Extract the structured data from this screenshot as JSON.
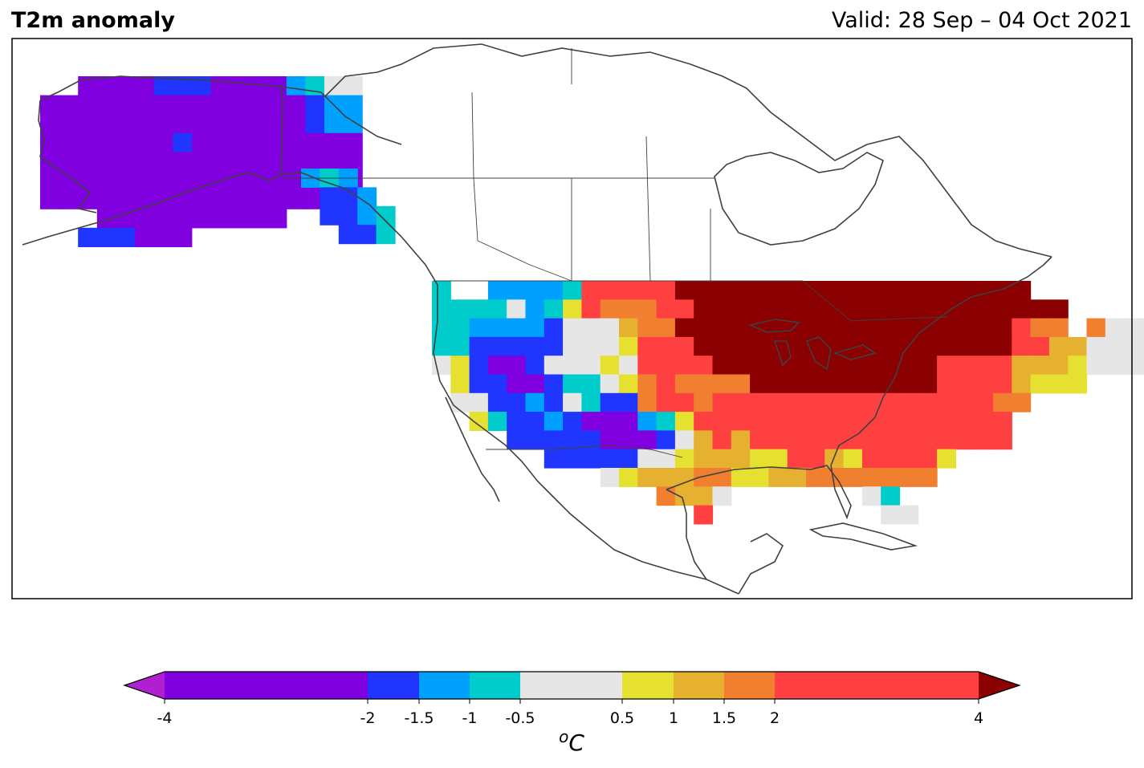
{
  "title": "T2m anomaly",
  "valid": "Valid: 28 Sep – 04 Oct 2021",
  "colorbar": {
    "unit_label": "oC",
    "ticks": [
      -4,
      -2,
      -1.5,
      -1,
      -0.5,
      0.5,
      1,
      1.5,
      2,
      4
    ],
    "tick_labels": [
      "-4",
      "-2",
      "-1.5",
      "-1",
      "-0.5",
      "0.5",
      "1",
      "1.5",
      "2",
      "4"
    ],
    "bins": [
      {
        "lo": -4,
        "hi": -2,
        "color": "#8000e0"
      },
      {
        "lo": -2,
        "hi": -1.5,
        "color": "#2036ff"
      },
      {
        "lo": -1.5,
        "hi": -1,
        "color": "#00a0ff"
      },
      {
        "lo": -1,
        "hi": -0.5,
        "color": "#00cccc"
      },
      {
        "lo": -0.5,
        "hi": 0.5,
        "color": "#e6e6e6"
      },
      {
        "lo": 0.5,
        "hi": 1,
        "color": "#e6e030"
      },
      {
        "lo": 1,
        "hi": 1.5,
        "color": "#e6b030"
      },
      {
        "lo": 1.5,
        "hi": 2,
        "color": "#f08030"
      },
      {
        "lo": 2,
        "hi": 4,
        "color": "#ff4040"
      }
    ],
    "under_color": "#b020d0",
    "over_color": "#8b0000"
  },
  "colors": {
    "coastline": "#404040",
    "frame": "#000000",
    "background": "#ffffff"
  }
}
